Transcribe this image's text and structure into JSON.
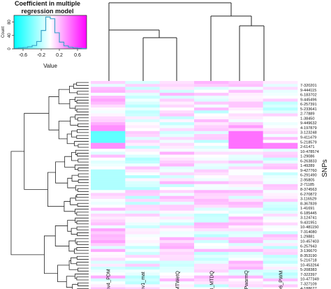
{
  "chart_data": {
    "type": "heatmap",
    "key": {
      "title_line1": "Coefficient in multiple",
      "title_line2": "regression model",
      "xlabel": "Value",
      "ylabel": "Count",
      "x_ticks": [
        "-0.6",
        "-0.2",
        "0.2",
        "0.6"
      ],
      "y_ticks": [
        "0",
        "40",
        "80"
      ],
      "x_range": [
        -0.8,
        0.8
      ],
      "y_range": [
        0,
        100
      ],
      "colors": {
        "negative": "#00ffff",
        "zero": "#ffffff",
        "positive": "#ff00ff"
      },
      "histogram_counts": [
        2,
        3,
        4,
        6,
        10,
        22,
        55,
        95,
        90,
        48,
        20,
        9,
        5,
        3,
        2,
        1
      ]
    },
    "columns": [
      "env4_PDM",
      "env1_mat",
      "_MTWetQ",
      "v3_MTDQ",
      "i_PwarmQ",
      "nv6_PWM"
    ],
    "ylabel": "SNPs",
    "row_labels": [
      "7-320201",
      "9-444115",
      "6-183702",
      "9-445496",
      "6-257391",
      "5-233641",
      "2-77889",
      "1-38450",
      "9-449632",
      "4-197879",
      "3-123248",
      "9-411479",
      "5-218579",
      "2-61471",
      "10-478574",
      "1-29086",
      "6-263833",
      "1-49289",
      "9-427760",
      "6-291490",
      "2-95805",
      "2-71185",
      "8-374563",
      "6-270872",
      "3-116529",
      "8-367839",
      "1-41691",
      "6-185445",
      "3-124741",
      "9-431951",
      "10-481150",
      "7-314080",
      "1-29881",
      "10-457403",
      "6-257943",
      "3-136670",
      "8-353190",
      "5-216718",
      "10-453264",
      "5-208383",
      "7-322397",
      "10-477349",
      "7-327109",
      "4-188627"
    ],
    "row_count": 72,
    "value_range": [
      -0.8,
      0.8
    ],
    "grid": false,
    "row_dendrogram": "left",
    "column_dendrogram": "top",
    "column_clusters": [
      [
        "env4_PDM",
        [
          "env1_mat",
          "_MTWetQ"
        ]
      ],
      [
        "v3_MTDQ",
        [
          "i_PwarmQ",
          "nv6_PWM"
        ]
      ]
    ]
  }
}
